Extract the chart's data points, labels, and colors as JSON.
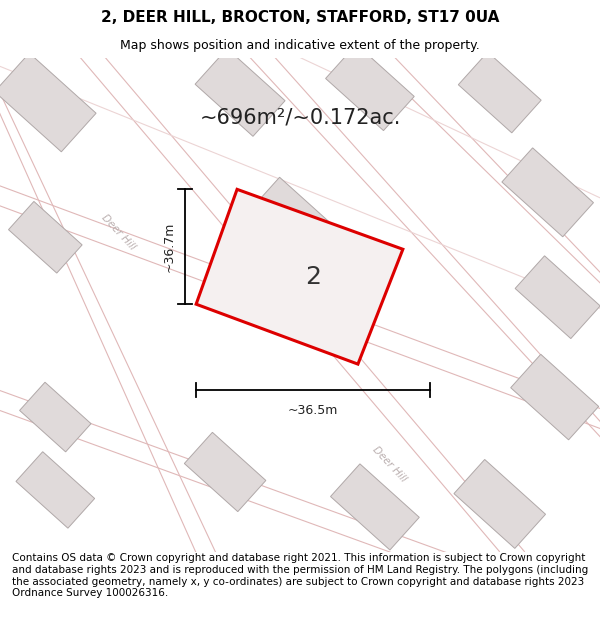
{
  "title": "2, DEER HILL, BROCTON, STAFFORD, ST17 0UA",
  "subtitle": "Map shows position and indicative extent of the property.",
  "area_text": "~696m²/~0.172ac.",
  "width_label": "~36.5m",
  "height_label": "~36.7m",
  "label_number": "2",
  "footer": "Contains OS data © Crown copyright and database right 2021. This information is subject to Crown copyright and database rights 2023 and is reproduced with the permission of HM Land Registry. The polygons (including the associated geometry, namely x, y co-ordinates) are subject to Crown copyright and database rights 2023 Ordnance Survey 100026316.",
  "map_bg": "#f7f4f4",
  "building_face": "#e0dada",
  "building_edge": "#b0a8a8",
  "road_line_color": "#e8c8c8",
  "plot_edge": "#dd0000",
  "plot_face": "#f5f0f0",
  "street_label_color": "#bbb0b0",
  "title_fontsize": 11,
  "subtitle_fontsize": 9,
  "area_fontsize": 15,
  "number_fontsize": 18,
  "dim_fontsize": 9,
  "footer_fontsize": 7.5
}
